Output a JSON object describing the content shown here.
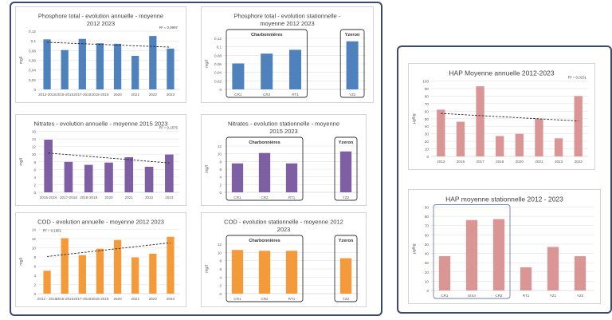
{
  "colors": {
    "blue": "#4f81bd",
    "purple": "#7f5fa4",
    "orange": "#f59a3a",
    "pink": "#d99694",
    "frame": "#3b4a6b"
  },
  "chart_data": [
    {
      "id": "p-annual",
      "type": "bar",
      "color": "#4f81bd",
      "title": [
        "Phosphore total - evolution annuelle - moyenne",
        "2012 2023"
      ],
      "ylabel": "mg/l",
      "ylim": [
        0,
        0.12
      ],
      "yticks": [
        "0",
        "0,02",
        "0,04",
        "0,06",
        "0,08",
        "0,1",
        "0,12"
      ],
      "categories": [
        "2012-2015",
        "2015-2016",
        "2017-2018",
        "2018-2019",
        "2020",
        "2021",
        "2022",
        "2023"
      ],
      "values": [
        0.103,
        0.081,
        0.104,
        0.095,
        0.094,
        0.069,
        0.11,
        0.084
      ],
      "trend": [
        0.097,
        0.087
      ],
      "r2": "R² = 0,0997",
      "groups": []
    },
    {
      "id": "p-station",
      "type": "bar",
      "color": "#4f81bd",
      "title": [
        "Phosphore total - evolution stationnelle -",
        "moyenne 2012 2023"
      ],
      "ylabel": "mg/l",
      "ylim": [
        0,
        0.12
      ],
      "yticks": [
        "0",
        "0,02",
        "0,04",
        "0,06",
        "0,08",
        "0,1",
        "0,12"
      ],
      "categories": [
        "CR1",
        "CR2",
        "RT1",
        "",
        "YZ2"
      ],
      "values": [
        0.061,
        0.084,
        0.093,
        null,
        0.113
      ],
      "groups": [
        {
          "label": "Charbonnières",
          "from": 0,
          "to": 2
        },
        {
          "label": "Yzeron",
          "from": 4,
          "to": 4
        }
      ]
    },
    {
      "id": "n-annual",
      "type": "bar",
      "color": "#7f5fa4",
      "title": [
        "Nitrates - evolution annuelle - moyenne 2015 2023"
      ],
      "ylabel": "mg/l",
      "ylim": [
        0,
        16
      ],
      "yticks": [
        "0",
        "2",
        "4",
        "6",
        "8",
        "10",
        "12",
        "14",
        "16"
      ],
      "categories": [
        "2015-2016",
        "2017-2018",
        "2018-2019",
        "2020",
        "2021",
        "2022",
        "2023"
      ],
      "values": [
        13.8,
        8.0,
        7.2,
        7.8,
        9.2,
        6.7,
        9.9
      ],
      "trend": [
        10.3,
        7.7
      ],
      "r2": "R² = 0,1575",
      "groups": []
    },
    {
      "id": "n-station",
      "type": "bar",
      "color": "#7f5fa4",
      "title": [
        "Nitrates - evolution stationnelle - moyenne",
        "2015 2023"
      ],
      "ylabel": "mg/l",
      "ylim": [
        0,
        12
      ],
      "yticks": [
        "0",
        "2",
        "4",
        "6",
        "8",
        "10",
        "12"
      ],
      "categories": [
        "CR1",
        "CR2",
        "RT1",
        "",
        "YZ2"
      ],
      "values": [
        7.5,
        10.2,
        7.5,
        null,
        10.6
      ],
      "groups": [
        {
          "label": "Charbonnières",
          "from": 0,
          "to": 2
        },
        {
          "label": "Yzeron",
          "from": 4,
          "to": 4
        }
      ]
    },
    {
      "id": "c-annual",
      "type": "bar",
      "color": "#f59a3a",
      "title": [
        "COD - evolution annuelle - moyenne 2012 2023"
      ],
      "ylabel": "mg/l",
      "ylim": [
        0,
        14
      ],
      "yticks": [
        "0",
        "2",
        "4",
        "6",
        "8",
        "10",
        "12",
        "14"
      ],
      "categories": [
        "2012 - 2015",
        "2015-2016",
        "2017-2018",
        "2018-2019",
        "2020",
        "2021",
        "2022",
        "2023"
      ],
      "values": [
        5.0,
        12.1,
        8.4,
        9.8,
        11.7,
        7.9,
        8.7,
        12.4
      ],
      "trend": [
        8.1,
        11.1
      ],
      "r2": "R² = 0,1651",
      "groups": []
    },
    {
      "id": "c-station",
      "type": "bar",
      "color": "#f59a3a",
      "title": [
        "COD - evolution stationnelle - moyenne 2012",
        "2023"
      ],
      "ylabel": "mg/l",
      "ylim": [
        0,
        12
      ],
      "yticks": [
        "0",
        "2",
        "4",
        "6",
        "8",
        "10",
        "12"
      ],
      "categories": [
        "CR1",
        "CR2",
        "RT1",
        "",
        "YZ2"
      ],
      "values": [
        10.6,
        10.4,
        10.4,
        null,
        8.6
      ],
      "groups": [
        {
          "label": "Charbonnières",
          "from": 0,
          "to": 2
        },
        {
          "label": "Yzeron",
          "from": 4,
          "to": 4
        }
      ]
    },
    {
      "id": "h-annual",
      "type": "bar",
      "color": "#d99694",
      "title": [
        "HAP Moyenne annuelle 2012-2023"
      ],
      "ylabel": "µg/kg",
      "ylim": [
        0,
        100
      ],
      "yticks": [
        "0",
        "10",
        "20",
        "30",
        "40",
        "50",
        "60",
        "70",
        "80",
        "90",
        "100"
      ],
      "categories": [
        "2012",
        "2015",
        "2017",
        "2018",
        "2020",
        "2021",
        "2022",
        "2023"
      ],
      "values": [
        62,
        46,
        93,
        27,
        30,
        50,
        24,
        80
      ],
      "trend": [
        57,
        47
      ],
      "r2": "R² = 0,0151",
      "groups": []
    },
    {
      "id": "h-station",
      "type": "bar",
      "color": "#d99694",
      "title": [
        "HAP moyenne stationnelle 2012 - 2023"
      ],
      "ylabel": "µg/kg",
      "ylim": [
        0,
        90
      ],
      "yticks": [
        "0",
        "10",
        "20",
        "30",
        "40",
        "50",
        "60",
        "70",
        "80",
        "90"
      ],
      "categories": [
        "CR1",
        "SIS4",
        "CR2",
        "RT1",
        "YZ1",
        "YZ2"
      ],
      "values": [
        37,
        76,
        77,
        25,
        47,
        37
      ],
      "groups": [
        {
          "label": "",
          "from": 0,
          "to": 2
        }
      ]
    }
  ]
}
